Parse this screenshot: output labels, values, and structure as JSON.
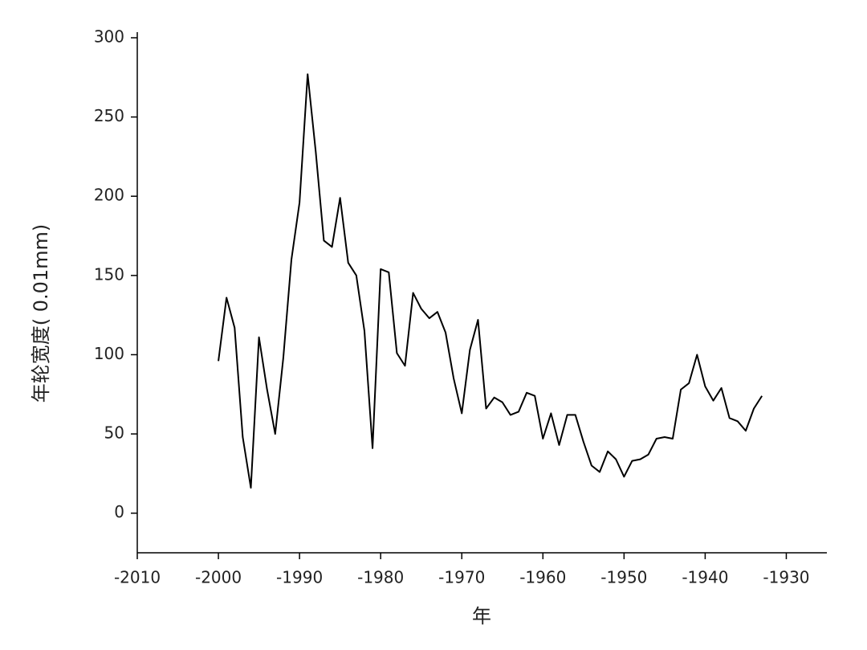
{
  "chart_data": {
    "type": "line",
    "xlabel": "年",
    "ylabel": "年轮宽度( 0.01mm)",
    "x": [
      -2000,
      -1999,
      -1998,
      -1997,
      -1996,
      -1995,
      -1994,
      -1993,
      -1992,
      -1991,
      -1990,
      -1989,
      -1988,
      -1987,
      -1986,
      -1985,
      -1984,
      -1983,
      -1982,
      -1981,
      -1980,
      -1979,
      -1978,
      -1977,
      -1976,
      -1975,
      -1974,
      -1973,
      -1972,
      -1971,
      -1970,
      -1969,
      -1968,
      -1967,
      -1966,
      -1965,
      -1964,
      -1963,
      -1962,
      -1961,
      -1960,
      -1959,
      -1958,
      -1957,
      -1956,
      -1955,
      -1954,
      -1953,
      -1952,
      -1951,
      -1950,
      -1949,
      -1948,
      -1947,
      -1946,
      -1945,
      -1944,
      -1943,
      -1942,
      -1941,
      -1940,
      -1939,
      -1938,
      -1937,
      -1936,
      -1935,
      -1934,
      -1933
    ],
    "values": [
      96,
      136,
      117,
      48,
      16,
      111,
      78,
      50,
      98,
      160,
      196,
      277,
      228,
      172,
      168,
      199,
      158,
      150,
      115,
      41,
      154,
      152,
      101,
      93,
      139,
      129,
      123,
      127,
      114,
      85,
      63,
      103,
      122,
      66,
      73,
      70,
      62,
      64,
      76,
      74,
      47,
      63,
      43,
      62,
      62,
      45,
      30,
      26,
      39,
      34,
      23,
      33,
      34,
      37,
      47,
      48,
      47,
      78,
      82,
      100,
      80,
      71,
      79,
      60,
      58,
      52,
      66,
      74
    ],
    "color": "#000000",
    "xlim": [
      -2010,
      -1925
    ],
    "xticks": [
      -2010,
      -2000,
      -1990,
      -1980,
      -1970,
      -1960,
      -1950,
      -1940,
      -1930
    ],
    "ylim": [
      -25,
      300
    ],
    "yticks": [
      0,
      50,
      100,
      150,
      200,
      250,
      300
    ]
  }
}
